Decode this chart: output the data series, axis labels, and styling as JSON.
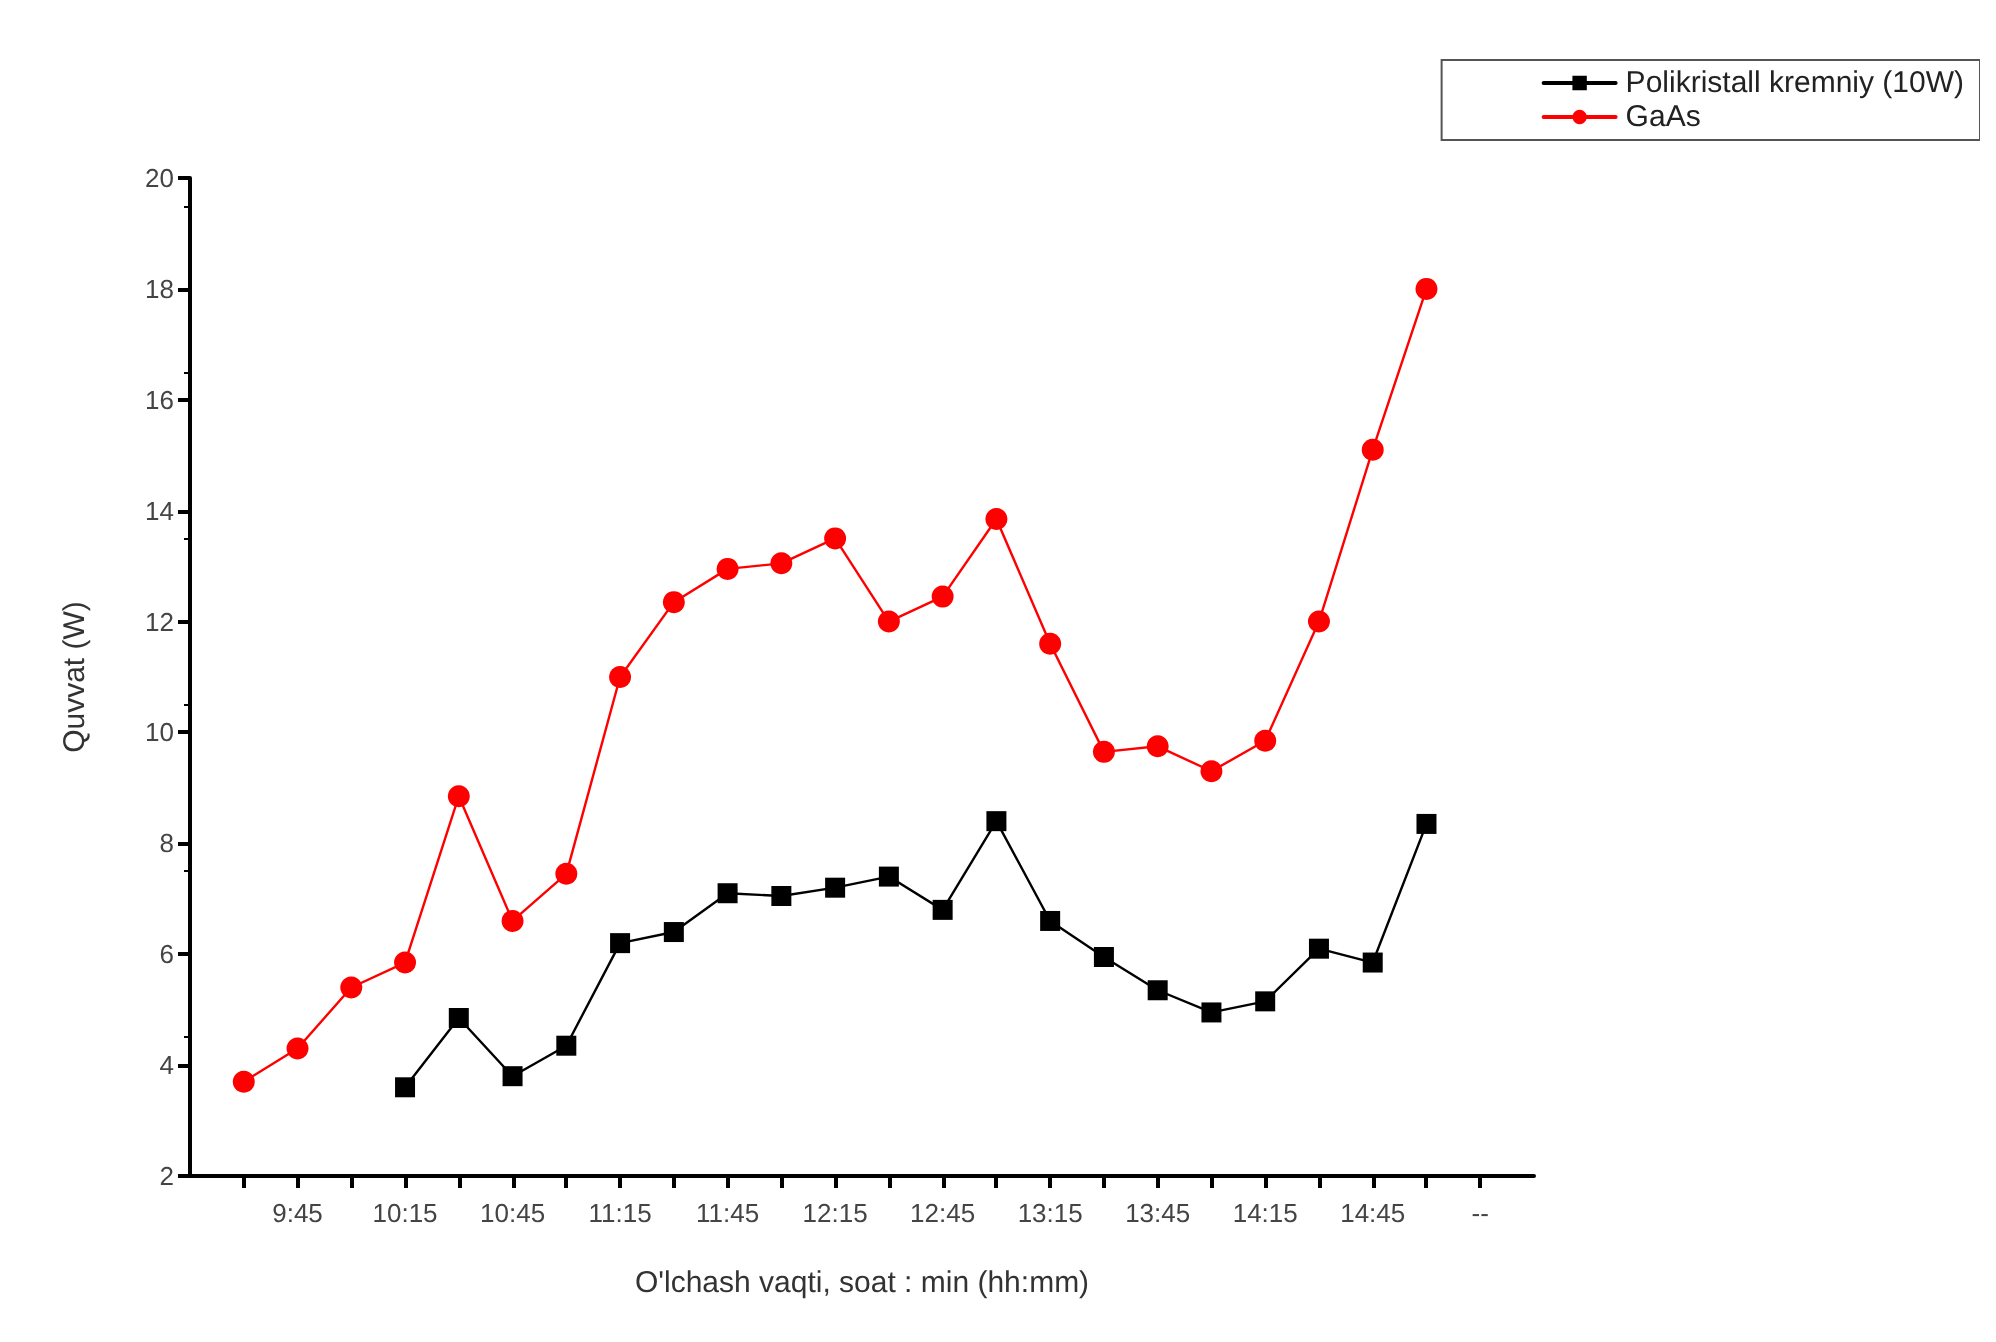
{
  "chart_data": {
    "type": "line",
    "xlabel": "O'lchash vaqti, soat : min (hh:mm)",
    "ylabel": "Quvvat (W)",
    "xlim": [
      9.25,
      15.5
    ],
    "ylim": [
      2,
      20
    ],
    "xticks": [
      {
        "value": 9.5,
        "label": null
      },
      {
        "value": 9.75,
        "label": "9:45"
      },
      {
        "value": 10,
        "label": null
      },
      {
        "value": 10.25,
        "label": "10:15"
      },
      {
        "value": 10.5,
        "label": null
      },
      {
        "value": 10.75,
        "label": "10:45"
      },
      {
        "value": 11,
        "label": null
      },
      {
        "value": 11.25,
        "label": "11:15"
      },
      {
        "value": 11.5,
        "label": null
      },
      {
        "value": 11.75,
        "label": "11:45"
      },
      {
        "value": 12,
        "label": null
      },
      {
        "value": 12.25,
        "label": "12:15"
      },
      {
        "value": 12.5,
        "label": null
      },
      {
        "value": 12.75,
        "label": "12:45"
      },
      {
        "value": 13,
        "label": null
      },
      {
        "value": 13.25,
        "label": "13:15"
      },
      {
        "value": 13.5,
        "label": null
      },
      {
        "value": 13.75,
        "label": "13:45"
      },
      {
        "value": 14,
        "label": null
      },
      {
        "value": 14.25,
        "label": "14:15"
      },
      {
        "value": 14.5,
        "label": null
      },
      {
        "value": 14.75,
        "label": "14:45"
      },
      {
        "value": 15,
        "label": null
      },
      {
        "value": 15.25,
        "label": "--"
      }
    ],
    "yticks": [
      2,
      4,
      6,
      8,
      10,
      12,
      14,
      16,
      18,
      20
    ],
    "grid": false,
    "legend": "top right",
    "series": [
      {
        "name": "Polikristall kremniy (10W)",
        "color": "#000000",
        "marker": "square",
        "x": [
          10.25,
          10.5,
          10.75,
          11,
          11.25,
          11.5,
          11.75,
          12,
          12.25,
          12.5,
          12.75,
          13,
          13.25,
          13.5,
          13.75,
          14,
          14.25,
          14.5,
          14.75,
          15
        ],
        "values": [
          3.6,
          4.85,
          3.8,
          4.35,
          6.2,
          6.4,
          7.1,
          7.05,
          7.2,
          7.4,
          6.8,
          8.4,
          6.6,
          5.95,
          5.35,
          4.95,
          5.15,
          6.1,
          5.85,
          8.35
        ]
      },
      {
        "name": "GaAs",
        "color": "#ff0000",
        "marker": "circle",
        "x": [
          9.5,
          9.75,
          10,
          10.25,
          10.5,
          10.75,
          11,
          11.25,
          11.5,
          11.75,
          12,
          12.25,
          12.5,
          12.75,
          13,
          13.25,
          13.5,
          13.75,
          14,
          14.25,
          14.5,
          14.75,
          15
        ],
        "values": [
          3.7,
          4.3,
          5.4,
          5.85,
          8.85,
          6.6,
          7.45,
          11.0,
          12.35,
          12.95,
          13.05,
          13.5,
          12.0,
          12.45,
          13.85,
          11.6,
          9.65,
          9.75,
          9.3,
          9.85,
          12.0,
          15.1,
          18.0
        ]
      }
    ]
  }
}
